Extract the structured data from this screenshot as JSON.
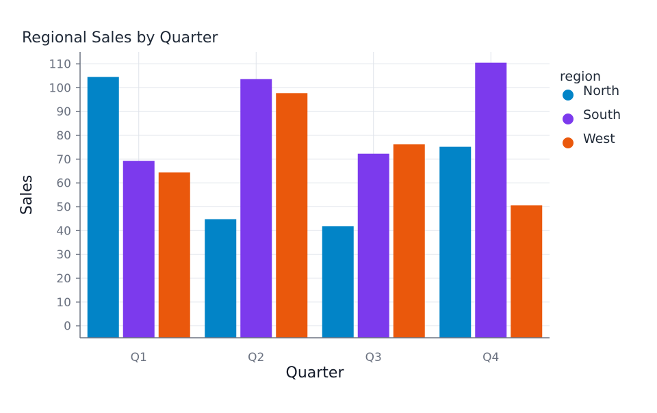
{
  "chart_data": {
    "type": "bar",
    "title": "Regional Sales by Quarter",
    "xlabel": "Quarter",
    "ylabel": "Sales",
    "categories": [
      "Q1",
      "Q2",
      "Q3",
      "Q4"
    ],
    "series": [
      {
        "name": "North",
        "values": [
          104.5,
          44.8,
          41.8,
          75.2
        ],
        "color": "#0284c7"
      },
      {
        "name": "South",
        "values": [
          69.3,
          103.6,
          72.3,
          110.5
        ],
        "color": "#7c3aed"
      },
      {
        "name": "West",
        "values": [
          64.4,
          97.7,
          76.2,
          50.6
        ],
        "color": "#ea580c"
      }
    ],
    "yticks": [
      0,
      10,
      20,
      30,
      40,
      50,
      60,
      70,
      80,
      90,
      100,
      110
    ],
    "ylim": [
      -5,
      115
    ],
    "legend": {
      "title": "region",
      "position": "top-right"
    },
    "grid": true
  }
}
